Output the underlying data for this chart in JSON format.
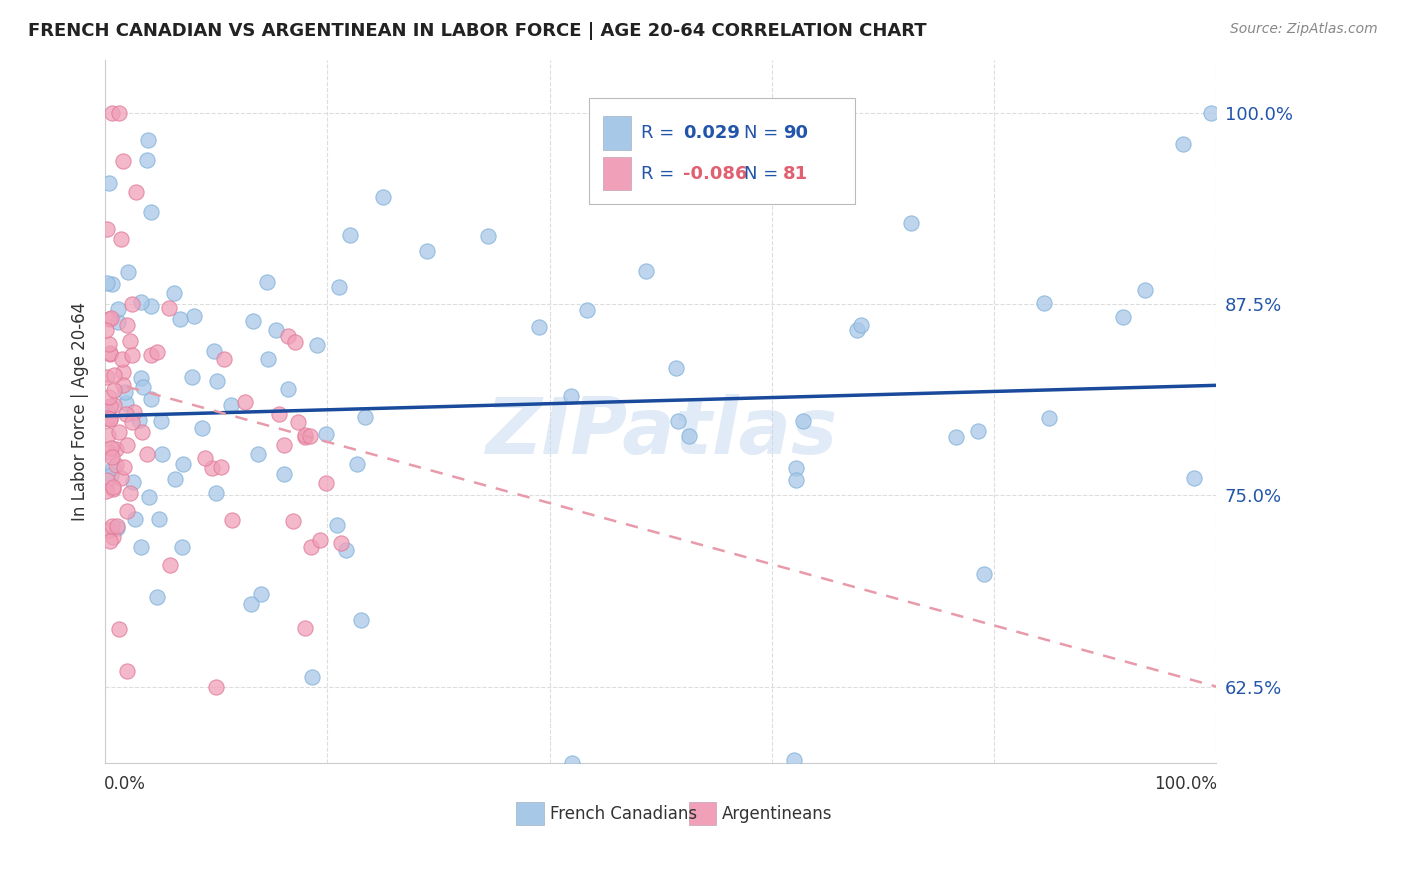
{
  "title": "FRENCH CANADIAN VS ARGENTINEAN IN LABOR FORCE | AGE 20-64 CORRELATION CHART",
  "source": "Source: ZipAtlas.com",
  "ylabel": "In Labor Force | Age 20-64",
  "xlim": [
    0.0,
    1.0
  ],
  "ylim": [
    0.575,
    1.035
  ],
  "yticks": [
    0.625,
    0.75,
    0.875,
    1.0
  ],
  "ytick_labels": [
    "62.5%",
    "75.0%",
    "87.5%",
    "100.0%"
  ],
  "xticks": [
    0.0,
    0.2,
    0.4,
    0.6,
    0.8,
    1.0
  ],
  "watermark": "ZIPatlas",
  "legend_r_blue": "0.029",
  "legend_n_blue": "90",
  "legend_r_pink": "-0.086",
  "legend_n_pink": "81",
  "blue_color": "#A8C8E8",
  "pink_color": "#F0A0B8",
  "blue_edge": "#7EB0D8",
  "pink_edge": "#E07898",
  "trend_blue_color": "#1A4A9C",
  "trend_pink_color": "#E89AAA",
  "title_color": "#222222",
  "source_color": "#888888",
  "label_color": "#333333",
  "axis_label_color": "#2255AA",
  "grid_color": "#DDDDDD",
  "spine_color": "#CCCCCC",
  "blue_trend_y0": 0.802,
  "blue_trend_y1": 0.822,
  "pink_trend_y0": 0.825,
  "pink_trend_y1": 0.625
}
